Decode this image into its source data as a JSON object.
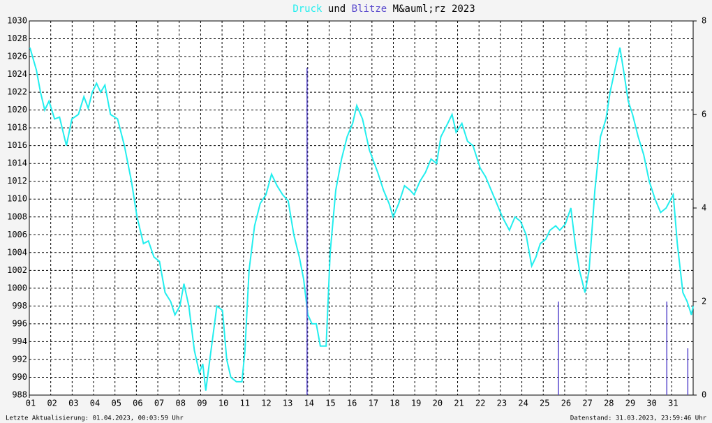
{
  "chart_data": {
    "type": "line",
    "title_words": [
      "und",
      "M&auml;rz 2023"
    ],
    "footer_left": "Letzte Aktualisierung: 01.04.2023, 00:03:59 Uhr",
    "footer_right": "Datenstand: 31.03.2023, 23:59:46 Uhr",
    "xlim": [
      0,
      31
    ],
    "xticks": [
      {
        "value": 0,
        "label": "01"
      },
      {
        "value": 1,
        "label": "02"
      },
      {
        "value": 2,
        "label": "03"
      },
      {
        "value": 3,
        "label": "04"
      },
      {
        "value": 4,
        "label": "05"
      },
      {
        "value": 5,
        "label": "06"
      },
      {
        "value": 6,
        "label": "07"
      },
      {
        "value": 7,
        "label": "08"
      },
      {
        "value": 8,
        "label": "09"
      },
      {
        "value": 9,
        "label": "10"
      },
      {
        "value": 10,
        "label": "11"
      },
      {
        "value": 11,
        "label": "12"
      },
      {
        "value": 12,
        "label": "13"
      },
      {
        "value": 13,
        "label": "14"
      },
      {
        "value": 14,
        "label": "15"
      },
      {
        "value": 15,
        "label": "16"
      },
      {
        "value": 16,
        "label": "17"
      },
      {
        "value": 17,
        "label": "18"
      },
      {
        "value": 18,
        "label": "19"
      },
      {
        "value": 19,
        "label": "20"
      },
      {
        "value": 20,
        "label": "21"
      },
      {
        "value": 21,
        "label": "22"
      },
      {
        "value": 22,
        "label": "23"
      },
      {
        "value": 23,
        "label": "24"
      },
      {
        "value": 24,
        "label": "25"
      },
      {
        "value": 25,
        "label": "26"
      },
      {
        "value": 26,
        "label": "27"
      },
      {
        "value": 27,
        "label": "28"
      },
      {
        "value": 28,
        "label": "29"
      },
      {
        "value": 29,
        "label": "30"
      },
      {
        "value": 30,
        "label": "31"
      }
    ],
    "ylim": [
      988,
      1030
    ],
    "yticks": [
      988,
      990,
      992,
      994,
      996,
      998,
      1000,
      1002,
      1004,
      1006,
      1008,
      1010,
      1012,
      1014,
      1016,
      1018,
      1020,
      1022,
      1024,
      1026,
      1028,
      1030
    ],
    "y2lim": [
      0,
      8
    ],
    "y2ticks": [
      0,
      2,
      4,
      6,
      8
    ],
    "grid": true,
    "series": [
      {
        "name": "Druck",
        "color": "#22eeee",
        "x": [
          0.03,
          0.33,
          0.52,
          0.72,
          0.92,
          1.18,
          1.41,
          1.73,
          1.99,
          2.29,
          2.55,
          2.75,
          2.94,
          3.14,
          3.33,
          3.53,
          3.79,
          4.12,
          4.44,
          4.77,
          5.03,
          5.33,
          5.56,
          5.82,
          6.08,
          6.34,
          6.6,
          6.8,
          7.03,
          7.22,
          7.45,
          7.71,
          7.94,
          8.1,
          8.24,
          8.43,
          8.76,
          9.02,
          9.22,
          9.41,
          9.67,
          9.93,
          10.07,
          10.26,
          10.52,
          10.78,
          11.05,
          11.31,
          11.57,
          11.83,
          12.09,
          12.35,
          12.61,
          12.81,
          13.01,
          13.2,
          13.4,
          13.59,
          13.86,
          14.05,
          14.31,
          14.58,
          14.84,
          15.1,
          15.29,
          15.56,
          15.88,
          16.27,
          16.54,
          16.8,
          16.99,
          17.25,
          17.52,
          17.78,
          17.97,
          18.24,
          18.5,
          18.76,
          19.02,
          19.22,
          19.54,
          19.74,
          19.93,
          20.2,
          20.46,
          20.72,
          21.05,
          21.31,
          21.57,
          21.83,
          22.09,
          22.42,
          22.68,
          22.94,
          23.2,
          23.46,
          23.66,
          23.86,
          24.12,
          24.31,
          24.58,
          24.77,
          25.03,
          25.29,
          25.49,
          25.69,
          25.95,
          26.14,
          26.41,
          26.67,
          26.93,
          27.12,
          27.39,
          27.58,
          27.78,
          27.97,
          28.17,
          28.43,
          28.69,
          28.95,
          29.22,
          29.48,
          29.74,
          30.07,
          30.26,
          30.52,
          30.72,
          30.92,
          31
        ],
        "values": [
          1027,
          1024.5,
          1022,
          1020,
          1021,
          1019,
          1019.2,
          1016,
          1019,
          1019.5,
          1021.5,
          1020.2,
          1022,
          1023,
          1022,
          1022.8,
          1019.5,
          1019,
          1016,
          1012,
          1008,
          1005,
          1005.3,
          1003.5,
          1003,
          999.5,
          998.5,
          997,
          998,
          1000.5,
          998,
          993,
          990.5,
          991.5,
          988.5,
          992,
          998,
          997.5,
          992,
          990,
          989.5,
          989.5,
          993,
          1002,
          1007,
          1009.5,
          1010.5,
          1012.8,
          1011.5,
          1010.5,
          1009.8,
          1006,
          1003.5,
          1001,
          997,
          996,
          996,
          993.5,
          993.5,
          1004,
          1011,
          1014.5,
          1017,
          1018.5,
          1020.5,
          1019,
          1015.5,
          1013,
          1011,
          1009.5,
          1008,
          1009.5,
          1011.5,
          1011,
          1010.5,
          1012,
          1013,
          1014.5,
          1014,
          1017,
          1018.5,
          1019.5,
          1017.5,
          1018.5,
          1016.5,
          1016,
          1013.5,
          1012.5,
          1011,
          1009.5,
          1008,
          1006.5,
          1008,
          1007.5,
          1006,
          1002.5,
          1003.5,
          1005,
          1005.5,
          1006.5,
          1007,
          1006.5,
          1007.2,
          1009,
          1005,
          1002,
          999.5,
          1002,
          1011,
          1017,
          1019,
          1022,
          1025,
          1027,
          1024,
          1021,
          1019.5,
          1017,
          1015,
          1012,
          1010,
          1008.5,
          1009,
          1010.5,
          1005,
          999.5,
          998.5,
          997,
          998
        ]
      },
      {
        "name": "Blitze",
        "color": "#5a4acd",
        "axis": "y2",
        "x": [
          12.97,
          24.71,
          29.77,
          30.75
        ],
        "values": [
          7,
          2,
          2,
          1
        ]
      }
    ]
  }
}
